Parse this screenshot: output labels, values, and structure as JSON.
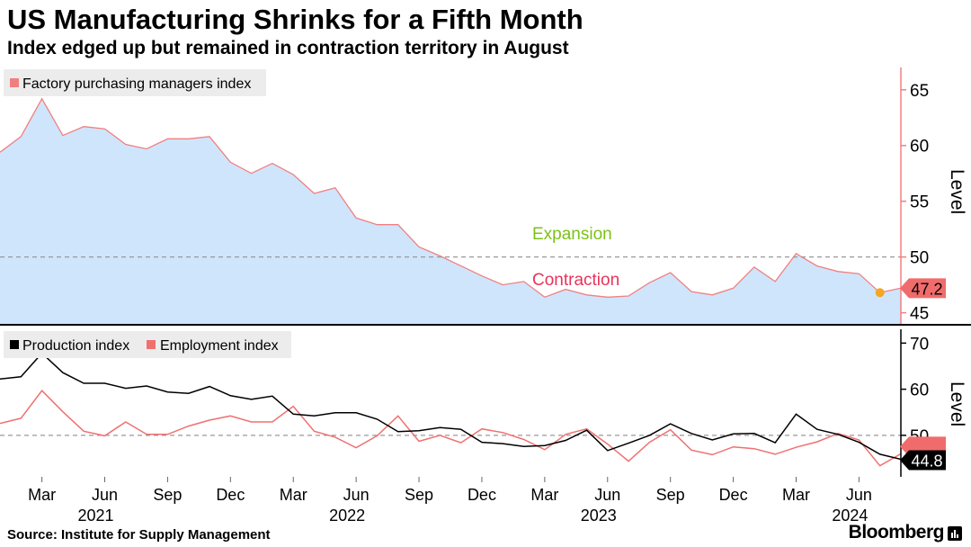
{
  "header": {
    "title": "US Manufacturing Shrinks for a Fifth Month",
    "subtitle": "Index edged up but remained in contraction territory in August"
  },
  "footer": {
    "source": "Source: Institute for Supply Management",
    "brand": "Bloomberg"
  },
  "colors": {
    "area_fill": "#cfe5fc",
    "pmi_line": "#f08080",
    "production": "#000000",
    "employment": "#f07070",
    "expansion": "#7cc217",
    "contraction": "#e8345a",
    "dot": "#f5a623",
    "badge": "#f06c6c"
  },
  "x_axis": {
    "ticks": [
      "Mar",
      "Jun",
      "Sep",
      "Dec",
      "Mar",
      "Jun",
      "Sep",
      "Dec",
      "Mar",
      "Jun",
      "Sep",
      "Dec",
      "Mar",
      "Jun"
    ],
    "years": [
      "2021",
      "2022",
      "2023",
      "2024"
    ]
  },
  "chart_data": [
    {
      "type": "area",
      "legend": [
        "Factory purchasing managers index"
      ],
      "ylabel": "Level",
      "ylim": [
        44,
        67
      ],
      "yticks": [
        45,
        50,
        55,
        60,
        65
      ],
      "reference_line": 50,
      "annotations": [
        "Expansion",
        "Contraction"
      ],
      "last_value_label": "47.2",
      "x_start": "2021-01",
      "x_end": "2024-08",
      "series": [
        {
          "name": "Factory purchasing managers index",
          "values": [
            59.4,
            60.8,
            64.2,
            60.9,
            61.7,
            61.5,
            60.1,
            59.7,
            60.6,
            60.6,
            60.8,
            58.5,
            57.5,
            58.4,
            57.4,
            55.7,
            56.2,
            53.5,
            52.9,
            52.9,
            50.9,
            50.1,
            49.2,
            48.3,
            47.5,
            47.8,
            46.4,
            47.1,
            46.6,
            46.4,
            46.5,
            47.7,
            48.6,
            46.9,
            46.6,
            47.2,
            49.1,
            47.8,
            50.3,
            49.2,
            48.7,
            48.5,
            46.8,
            47.2
          ]
        }
      ]
    },
    {
      "type": "line",
      "legend": [
        "Production index",
        "Employment index"
      ],
      "ylabel": "Level",
      "ylim": [
        41,
        73
      ],
      "yticks": [
        50,
        60,
        70
      ],
      "reference_line": 50,
      "last_value_labels": [
        "44.8"
      ],
      "x_start": "2021-01",
      "x_end": "2024-08",
      "series": [
        {
          "name": "Production index",
          "values": [
            62.2,
            62.7,
            67.8,
            63.6,
            61.3,
            61.3,
            60.2,
            60.7,
            59.4,
            59.1,
            60.6,
            58.6,
            57.8,
            58.5,
            54.6,
            54.2,
            54.9,
            54.9,
            53.5,
            50.8,
            51.0,
            51.7,
            51.3,
            48.5,
            48.2,
            47.6,
            47.8,
            48.9,
            51.1,
            46.7,
            48.3,
            50.0,
            52.5,
            50.4,
            49.0,
            50.3,
            50.4,
            48.4,
            54.6,
            51.3,
            50.2,
            48.5,
            45.9,
            44.8
          ]
        },
        {
          "name": "Employment index",
          "values": [
            52.6,
            53.7,
            59.7,
            55.1,
            50.9,
            49.9,
            52.9,
            50.2,
            50.2,
            52.0,
            53.3,
            54.2,
            52.9,
            52.9,
            56.3,
            50.9,
            49.6,
            47.3,
            49.9,
            54.2,
            48.7,
            50.0,
            48.4,
            51.4,
            50.6,
            49.1,
            46.9,
            50.2,
            51.4,
            48.1,
            44.4,
            48.5,
            51.2,
            46.8,
            45.8,
            47.5,
            47.1,
            45.9,
            47.4,
            48.6,
            50.4,
            49.0,
            43.4,
            46.0
          ]
        }
      ]
    }
  ]
}
